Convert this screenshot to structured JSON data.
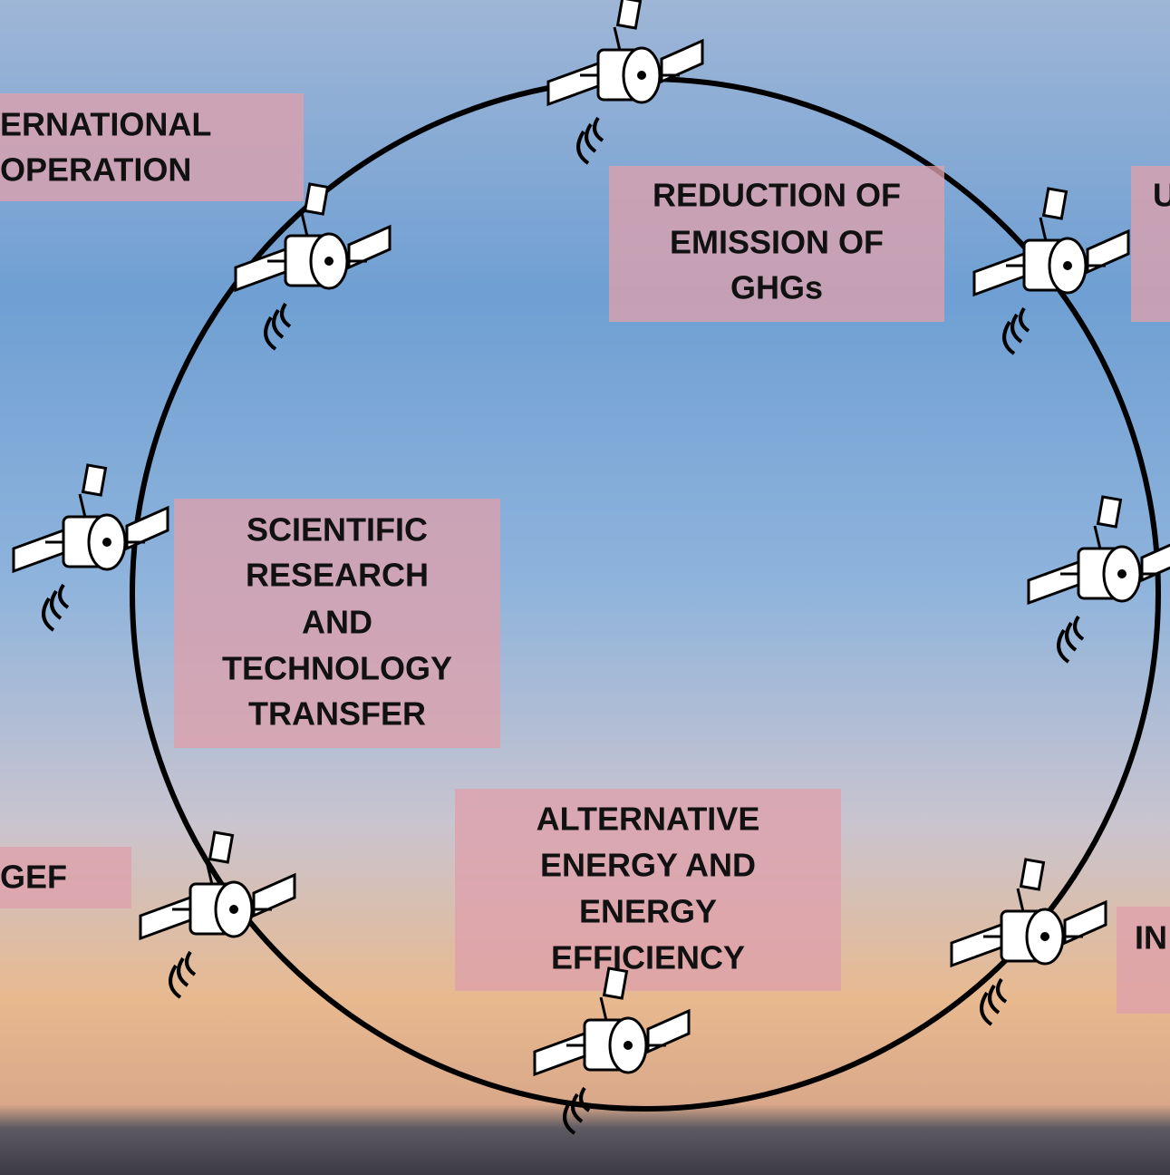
{
  "labels": [
    {
      "lines": [
        "ERNATIONAL",
        "OPERATION"
      ]
    },
    {
      "lines": [
        "REDUCTION OF",
        "EMISSION OF",
        "GHGs"
      ]
    },
    {
      "lines": [
        "U"
      ]
    },
    {
      "lines": [
        "SCIENTIFIC",
        "RESEARCH",
        "AND",
        "TECHNOLOGY",
        "TRANSFER"
      ]
    },
    {
      "lines": [
        "GEF"
      ]
    },
    {
      "lines": [
        "ALTERNATIVE",
        "ENERGY AND",
        "ENERGY",
        "EFFICIENCY"
      ]
    },
    {
      "lines": [
        "IN"
      ]
    }
  ]
}
